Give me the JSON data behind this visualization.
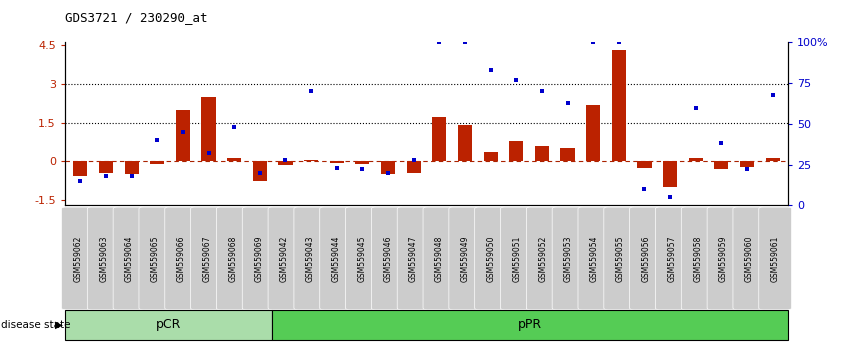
{
  "title": "GDS3721 / 230290_at",
  "categories": [
    "GSM559062",
    "GSM559063",
    "GSM559064",
    "GSM559065",
    "GSM559066",
    "GSM559067",
    "GSM559068",
    "GSM559069",
    "GSM559042",
    "GSM559043",
    "GSM559044",
    "GSM559045",
    "GSM559046",
    "GSM559047",
    "GSM559048",
    "GSM559049",
    "GSM559050",
    "GSM559051",
    "GSM559052",
    "GSM559053",
    "GSM559054",
    "GSM559055",
    "GSM559056",
    "GSM559057",
    "GSM559058",
    "GSM559059",
    "GSM559060",
    "GSM559061"
  ],
  "red_values": [
    -0.55,
    -0.45,
    -0.5,
    -0.1,
    2.0,
    2.5,
    0.15,
    -0.75,
    -0.15,
    0.05,
    -0.05,
    -0.1,
    -0.5,
    -0.45,
    1.7,
    1.4,
    0.35,
    0.8,
    0.6,
    0.5,
    2.2,
    4.3,
    -0.25,
    -1.0,
    0.15,
    -0.3,
    -0.2,
    0.15
  ],
  "blue_values": [
    15,
    18,
    18,
    40,
    45,
    32,
    48,
    20,
    28,
    70,
    23,
    22,
    20,
    28,
    100,
    100,
    83,
    77,
    70,
    63,
    100,
    100,
    10,
    5,
    60,
    38,
    22,
    68
  ],
  "pcr_count": 8,
  "ppr_count": 20,
  "ylim": [
    -1.7,
    4.6
  ],
  "y2lim": [
    0,
    100
  ],
  "yticks_left": [
    -1.5,
    0,
    1.5,
    3.0,
    4.5
  ],
  "ytick_labels_left": [
    "-1.5",
    "0",
    "1.5",
    "3",
    "4.5"
  ],
  "y2ticks": [
    0,
    25,
    50,
    75,
    100
  ],
  "y2tick_labels": [
    "0",
    "25",
    "50",
    "75",
    "100%"
  ],
  "hlines": [
    1.5,
    3.0
  ],
  "bar_color": "#bb2200",
  "blue_color": "#0000cc",
  "pcr_color": "#aaddaa",
  "ppr_color": "#55cc55",
  "zero_line_color": "#aa2200",
  "label_box_color": "#cccccc"
}
